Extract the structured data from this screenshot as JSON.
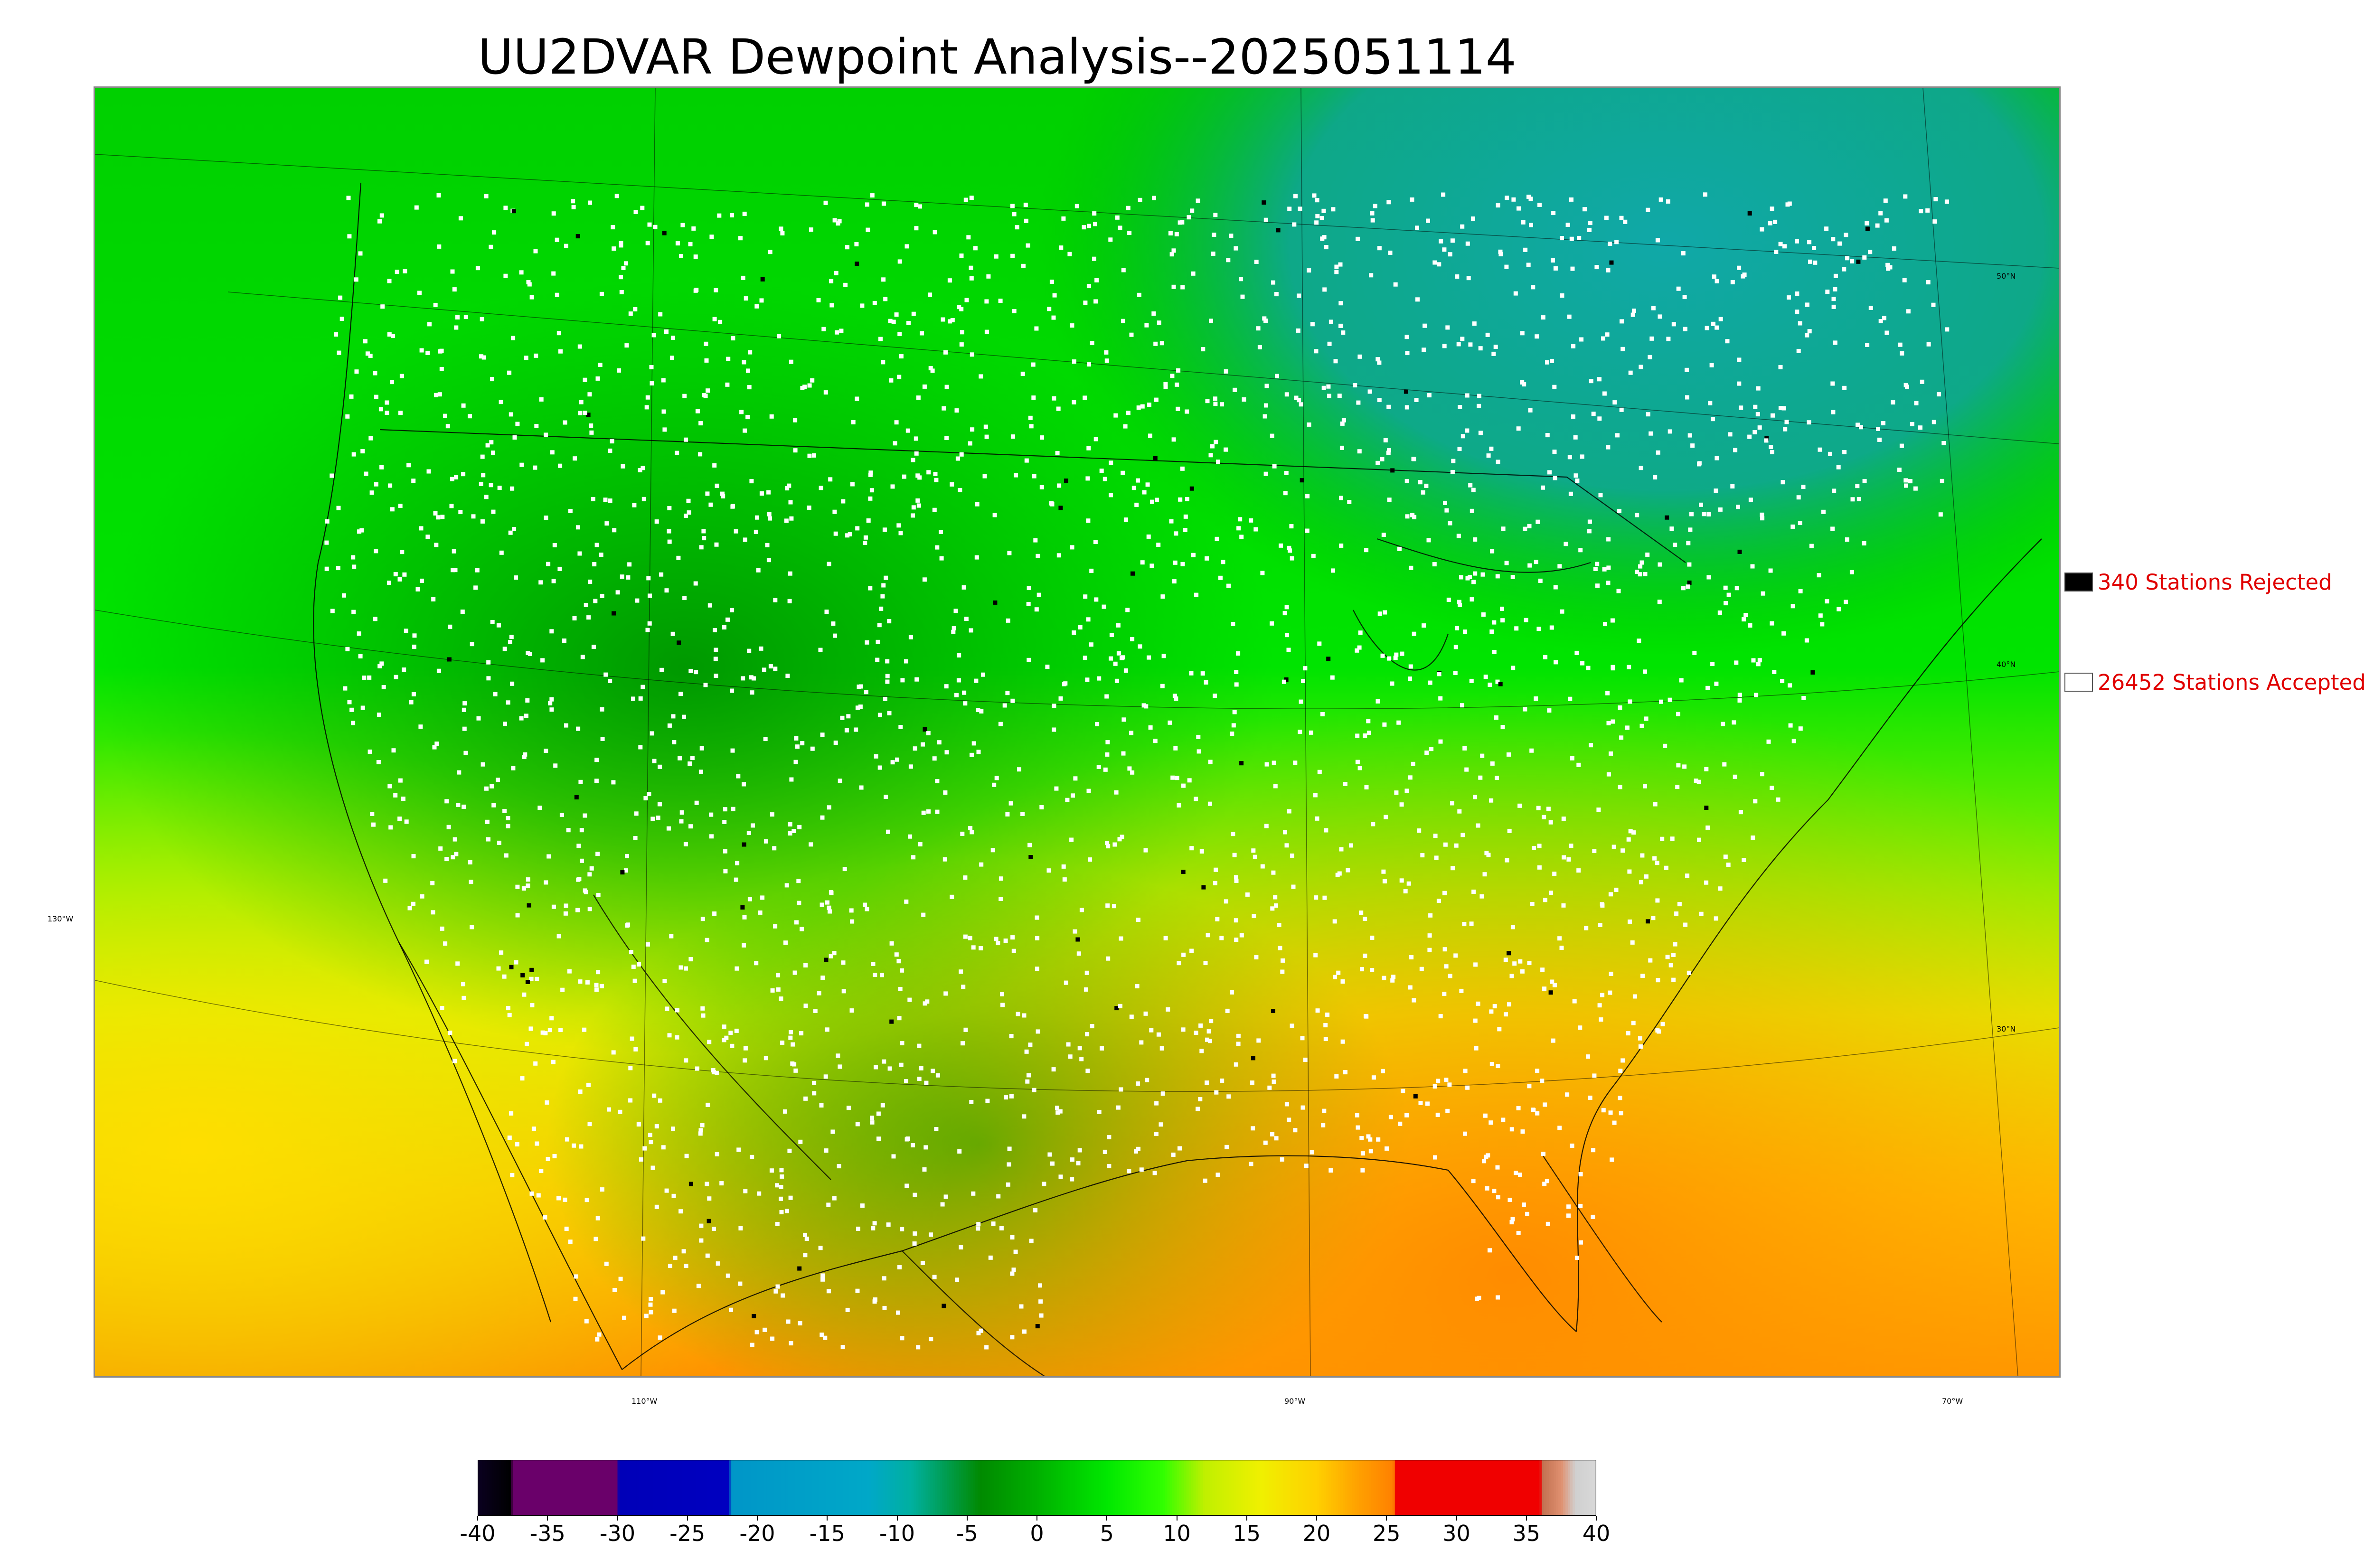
{
  "title": "UU2DVAR Dewpoint Analysis--2025051114",
  "legend": {
    "rejected_label": "340 Stations Rejected",
    "accepted_label": "26452 Stations Accepted",
    "rejected_color": "#000000",
    "accepted_color": "#ffffff"
  },
  "latitude_labels": [
    "50°N",
    "40°N",
    "30°N"
  ],
  "longitude_labels": [
    "130°W",
    "110°W",
    "90°W",
    "70°W"
  ],
  "colorbar": {
    "min": -40,
    "max": 40,
    "tick_labels": [
      "-40",
      "-35",
      "-30",
      "-25",
      "-20",
      "-15",
      "-10",
      "-5",
      "0",
      "5",
      "10",
      "15",
      "20",
      "25",
      "30",
      "35",
      "40"
    ],
    "colors": [
      {
        "at": -40,
        "color": "#0a0020"
      },
      {
        "at": -37.6,
        "color": "#000000"
      },
      {
        "at": -37.5,
        "color": "#6a006a"
      },
      {
        "at": -30,
        "color": "#6a006a"
      },
      {
        "at": -29.9,
        "color": "#0000b8"
      },
      {
        "at": -22,
        "color": "#0000c0"
      },
      {
        "at": -21.9,
        "color": "#0096c8"
      },
      {
        "at": -12,
        "color": "#00a8c8"
      },
      {
        "at": -9,
        "color": "#00b0a0"
      },
      {
        "at": -4,
        "color": "#008a00"
      },
      {
        "at": 0,
        "color": "#00b000"
      },
      {
        "at": 5,
        "color": "#00e800"
      },
      {
        "at": 9,
        "color": "#30ff00"
      },
      {
        "at": 12,
        "color": "#c0f000"
      },
      {
        "at": 16,
        "color": "#f0f000"
      },
      {
        "at": 20,
        "color": "#ffd000"
      },
      {
        "at": 23,
        "color": "#ffa000"
      },
      {
        "at": 25.5,
        "color": "#ff8000"
      },
      {
        "at": 25.6,
        "color": "#f00000"
      },
      {
        "at": 36,
        "color": "#f00000"
      },
      {
        "at": 36.1,
        "color": "#c07050"
      },
      {
        "at": 37.5,
        "color": "#e09070"
      },
      {
        "at": 38.5,
        "color": "#d0d0d0"
      },
      {
        "at": 40,
        "color": "#d8d8d8"
      }
    ]
  }
}
